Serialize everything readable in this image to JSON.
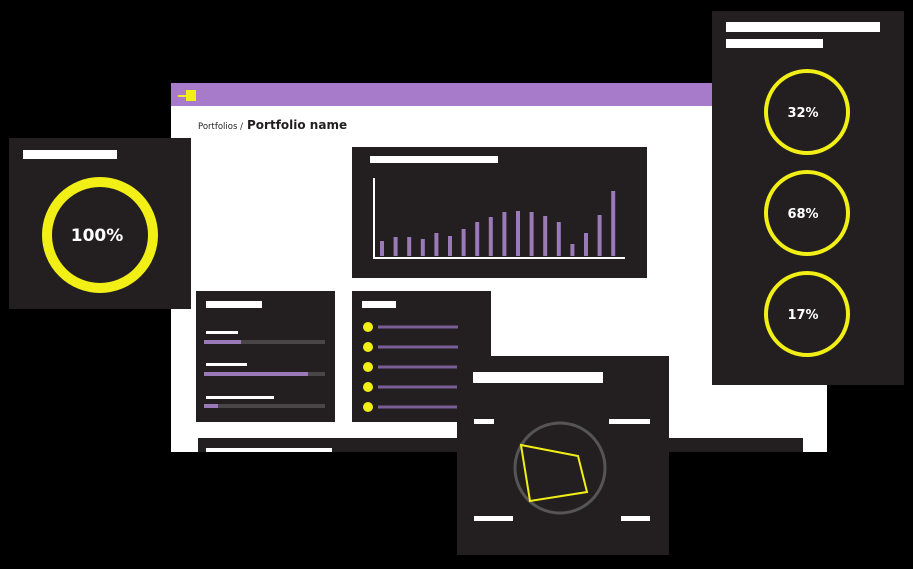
{
  "breadcrumb": {
    "parent": "Portfolios /",
    "current": "Portfolio name"
  },
  "gauges": {
    "main": "100%",
    "list": [
      "32%",
      "68%",
      "17%"
    ]
  }
}
